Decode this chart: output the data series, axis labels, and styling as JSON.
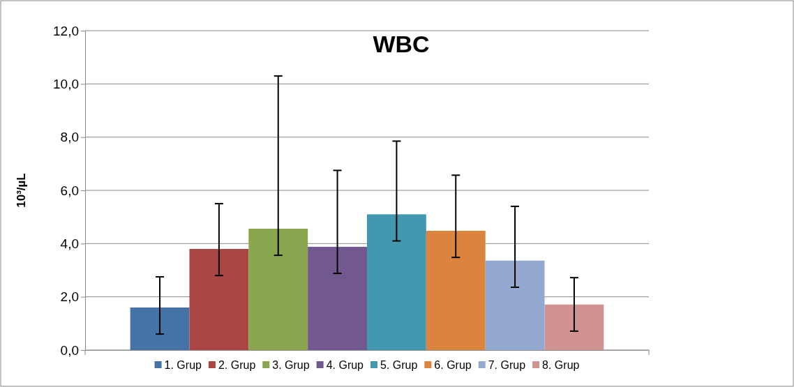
{
  "chart_data": {
    "type": "bar",
    "title": "WBC",
    "ylabel": "10³/µL",
    "categories": [
      null
    ],
    "series": [
      {
        "name": "1. Grup",
        "color": "#4572a7",
        "values": [
          1.6
        ],
        "errors": [
          [
            0.6,
            2.75
          ]
        ]
      },
      {
        "name": "2. Grup",
        "color": "#aa4643",
        "values": [
          3.8
        ],
        "errors": [
          [
            2.8,
            5.5
          ]
        ]
      },
      {
        "name": "3. Grup",
        "color": "#89a54e",
        "values": [
          4.56
        ],
        "errors": [
          [
            3.56,
            10.3
          ]
        ]
      },
      {
        "name": "4. Grup",
        "color": "#71588f",
        "values": [
          3.88
        ],
        "errors": [
          [
            2.88,
            6.75
          ]
        ]
      },
      {
        "name": "5. Grup",
        "color": "#4198af",
        "values": [
          5.1
        ],
        "errors": [
          [
            4.1,
            7.85
          ]
        ]
      },
      {
        "name": "6. Grup",
        "color": "#db843d",
        "values": [
          4.48
        ],
        "errors": [
          [
            3.48,
            6.57
          ]
        ]
      },
      {
        "name": "7. Grup",
        "color": "#93a9cf",
        "values": [
          3.36
        ],
        "errors": [
          [
            2.36,
            5.4
          ]
        ]
      },
      {
        "name": "8. Grup",
        "color": "#d19392",
        "values": [
          1.71
        ],
        "errors": [
          [
            0.71,
            2.72
          ]
        ]
      }
    ],
    "ylim": [
      0,
      12
    ],
    "yticks": [
      {
        "value": 0,
        "label": "0,0"
      },
      {
        "value": 2,
        "label": "2,0"
      },
      {
        "value": 4,
        "label": "4,0"
      },
      {
        "value": 6,
        "label": "6,0"
      },
      {
        "value": 8,
        "label": "8,0"
      },
      {
        "value": 10,
        "label": "10,0"
      },
      {
        "value": 12,
        "label": "12,0"
      }
    ],
    "grid": "y",
    "legend": "bottom"
  }
}
